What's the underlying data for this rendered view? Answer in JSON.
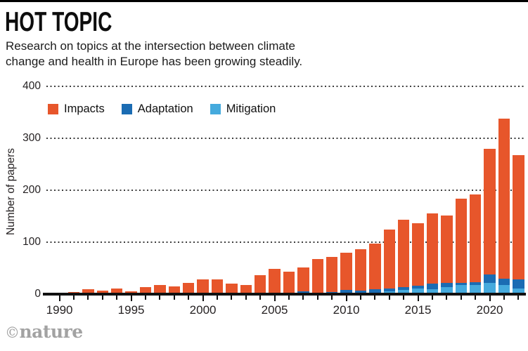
{
  "header": {
    "title": "HOT TOPIC",
    "subtitle_line1": "Research on topics at the intersection between climate",
    "subtitle_line2": "change and health in Europe has been growing steadily."
  },
  "chart_data": {
    "type": "bar",
    "stacked": true,
    "ylabel": "Number of papers",
    "xlabel": "",
    "ylim": [
      0,
      400
    ],
    "yticks": [
      0,
      100,
      200,
      300,
      400
    ],
    "xtick_labeled_years": [
      1990,
      1995,
      2000,
      2005,
      2010,
      2015,
      2020
    ],
    "xtick_minor_years_range": [
      1990,
      2022
    ],
    "grid": "horizontal dotted",
    "legend_position": "top-left inside plot",
    "stack_order_bottom_to_top": [
      "Mitigation",
      "Adaptation",
      "Impacts"
    ],
    "categories": [
      1991,
      1992,
      1993,
      1994,
      1995,
      1996,
      1997,
      1998,
      1999,
      2000,
      2001,
      2002,
      2003,
      2004,
      2005,
      2006,
      2007,
      2008,
      2009,
      2010,
      2011,
      2012,
      2013,
      2014,
      2015,
      2016,
      2017,
      2018,
      2019,
      2020,
      2021,
      2022
    ],
    "series": [
      {
        "name": "Impacts",
        "color": "#e7562b",
        "values": [
          4,
          9,
          7,
          11,
          5,
          13,
          18,
          15,
          21,
          28,
          28,
          20,
          17,
          37,
          49,
          43,
          46,
          64,
          67,
          72,
          79,
          87,
          114,
          130,
          121,
          135,
          129,
          162,
          169,
          242,
          308,
          238
        ]
      },
      {
        "name": "Adaptation",
        "color": "#1b6cb3",
        "values": [
          0,
          0,
          0,
          0,
          0,
          0,
          0,
          0,
          0,
          0,
          0,
          0,
          0,
          0,
          0,
          0,
          4,
          3,
          3,
          6,
          5,
          7,
          5,
          5,
          5,
          11,
          9,
          5,
          6,
          17,
          13,
          18
        ]
      },
      {
        "name": "Mitigation",
        "color": "#45aadd",
        "values": [
          0,
          0,
          0,
          0,
          0,
          0,
          0,
          0,
          0,
          0,
          0,
          0,
          0,
          0,
          0,
          0,
          1,
          0,
          1,
          2,
          2,
          3,
          6,
          8,
          11,
          9,
          13,
          17,
          17,
          21,
          17,
          11
        ]
      }
    ]
  },
  "footer": {
    "credit_symbol": "©",
    "credit_name": "nature"
  },
  "colors": {
    "impacts": "#e7562b",
    "adaptation": "#1b6cb3",
    "mitigation": "#45aadd",
    "axis": "#111111",
    "grid_dots": "#3d3d3d"
  }
}
